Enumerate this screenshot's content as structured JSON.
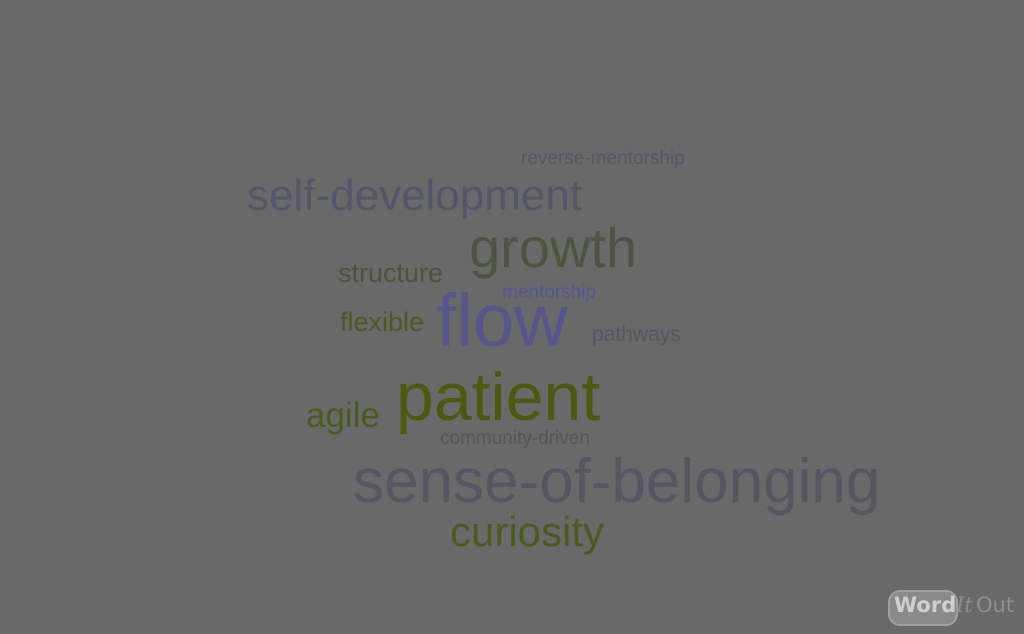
{
  "cloud": {
    "background": "#696969",
    "words": [
      {
        "text": "reverse-mentorship",
        "color": "#555566"
      },
      {
        "text": "self-development",
        "color": "#55556a"
      },
      {
        "text": "growth",
        "color": "#4c5540"
      },
      {
        "text": "structure",
        "color": "#4a5436"
      },
      {
        "text": "mentorship",
        "color": "#555599"
      },
      {
        "text": "flexible",
        "color": "#4c5a22"
      },
      {
        "text": "flow",
        "color": "#56558c"
      },
      {
        "text": "pathways",
        "color": "#555566"
      },
      {
        "text": "agile",
        "color": "#4b5a1e"
      },
      {
        "text": "patient",
        "color": "#4b5a10"
      },
      {
        "text": "community-driven",
        "color": "#555555"
      },
      {
        "text": "sense-of-belonging",
        "color": "#555563"
      },
      {
        "text": "curiosity",
        "color": "#4c5a20"
      }
    ]
  },
  "logo": {
    "part1": "Word",
    "part2": "It",
    "part3": "Out"
  }
}
